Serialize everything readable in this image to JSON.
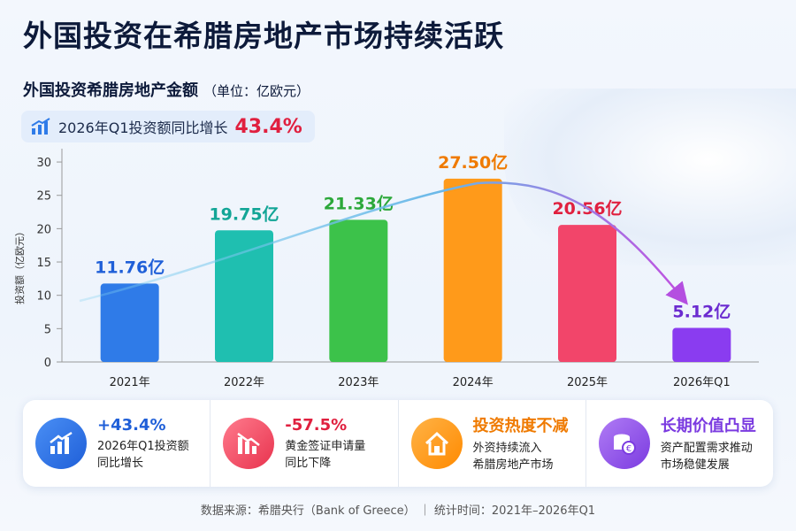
{
  "title": "外国投资在希腊房地产市场持续活跃",
  "banner": {
    "text": "2026年Q1投资额同比增长",
    "value": "43.4%"
  },
  "chart_data": {
    "type": "bar",
    "title": "外国投资希腊房地产金额",
    "unit": "（单位：亿欧元）",
    "ylabel": "投资额（亿欧元）",
    "categories": [
      "2021年",
      "2022年",
      "2023年",
      "2024年",
      "2025年",
      "2026年Q1"
    ],
    "values": [
      11.76,
      19.75,
      21.33,
      27.5,
      20.56,
      5.12
    ],
    "value_labels": [
      "11.76亿",
      "19.75亿",
      "21.33亿",
      "27.50亿",
      "20.56亿",
      "5.12亿"
    ],
    "colors": [
      "#2f7be8",
      "#1fbfb0",
      "#3cc24a",
      "#ff9a1a",
      "#f2456a",
      "#8a3cf0"
    ],
    "label_colors": [
      "#1f5fd8",
      "#12a596",
      "#2ca83a",
      "#ef7a00",
      "#e0203f",
      "#6b2bd0"
    ],
    "ylim": [
      0,
      32
    ],
    "yticks": [
      0,
      5,
      10,
      15,
      20,
      25,
      30
    ]
  },
  "cards": [
    {
      "value": "+43.4%",
      "lines": [
        "2026年Q1投资额",
        "同比增长"
      ]
    },
    {
      "value": "-57.5%",
      "lines": [
        "黄金签证申请量",
        "同比下降"
      ]
    },
    {
      "value": "投资热度不减",
      "lines": [
        "外资持续流入",
        "希腊房地产市场"
      ]
    },
    {
      "value": "长期价值凸显",
      "lines": [
        "资产配置需求推动",
        "市场稳健发展"
      ]
    }
  ],
  "footer": {
    "source": "数据来源：希腊央行（Bank of Greece）",
    "period": "统计时间：2021年–2026年Q1"
  }
}
